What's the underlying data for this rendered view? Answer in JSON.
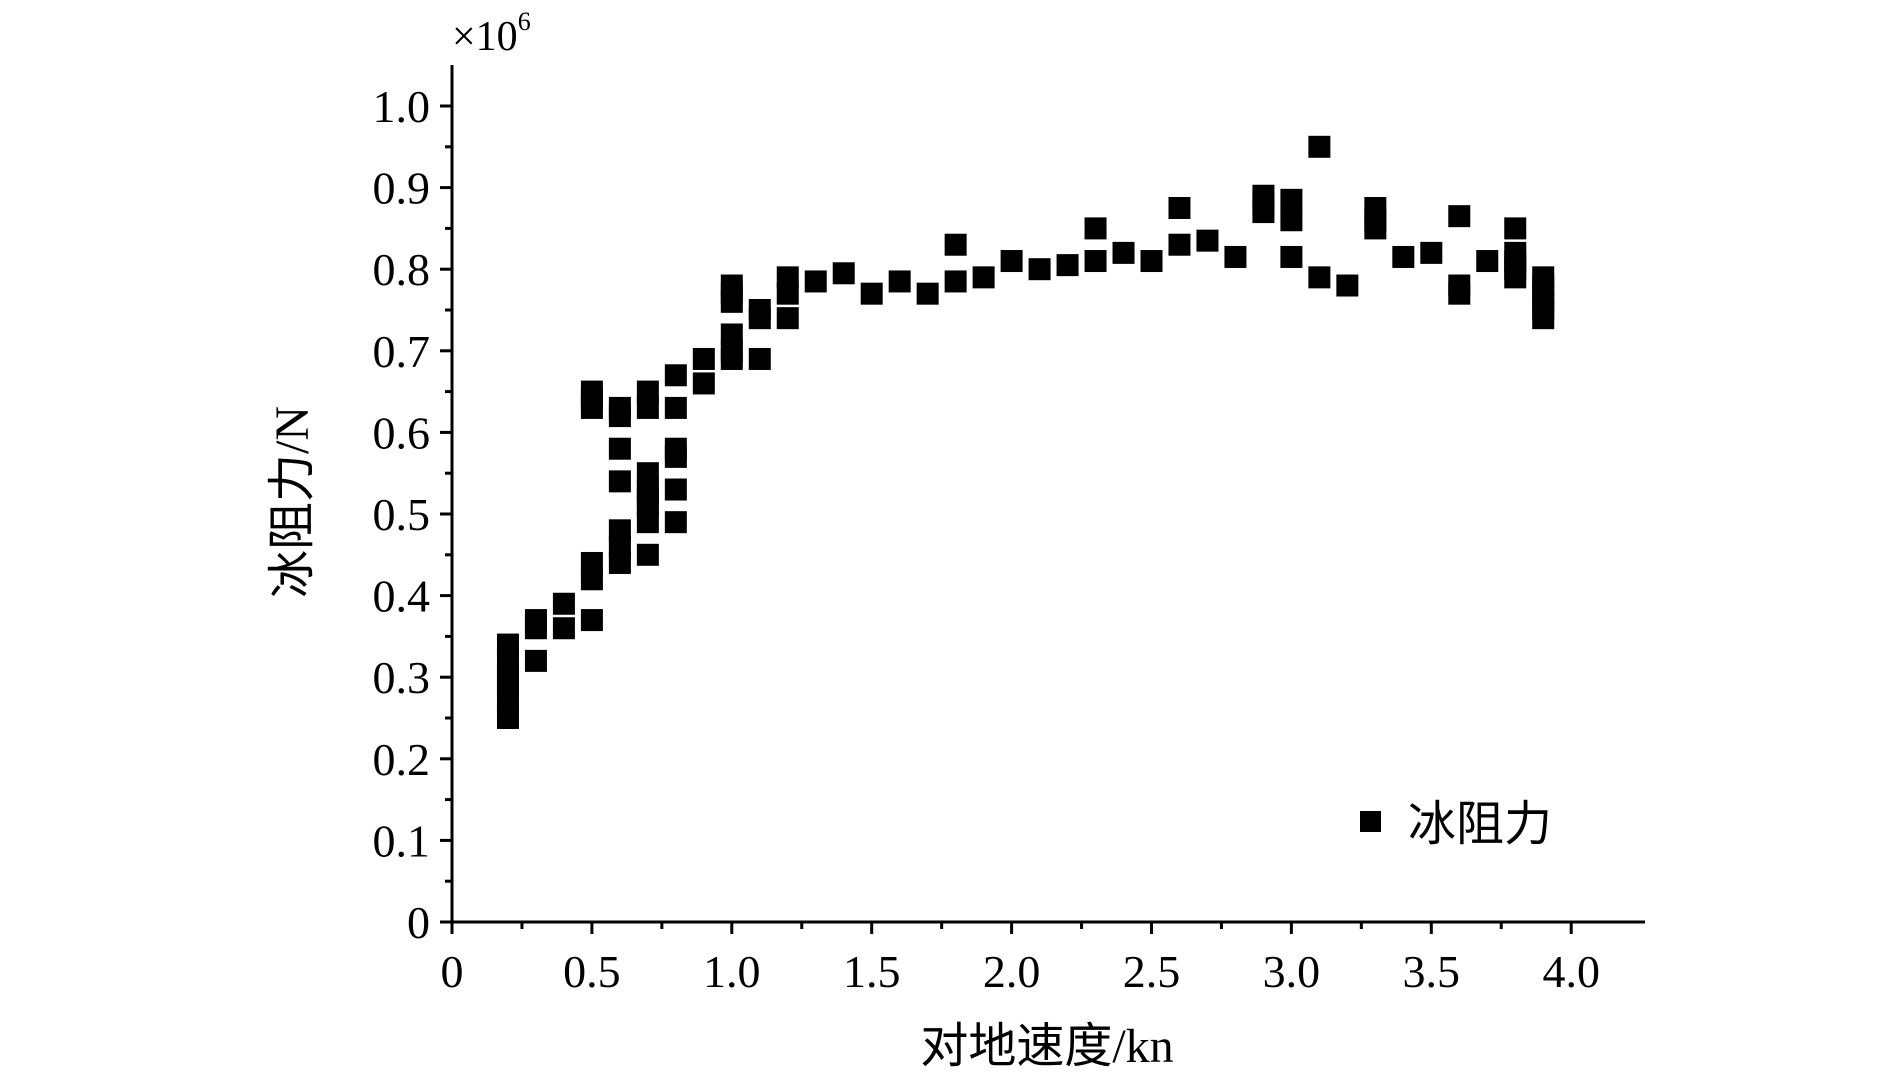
{
  "chart_data": {
    "type": "scatter",
    "title": "",
    "xlabel": "对地速度/kn",
    "ylabel": "冰阻力/N",
    "y_multiplier": {
      "base": "×10",
      "exponent": "6"
    },
    "xlim": [
      0,
      4.25
    ],
    "ylim": [
      0,
      1.05
    ],
    "x_ticks": [
      0,
      0.5,
      1.0,
      1.5,
      2.0,
      2.5,
      3.0,
      3.5,
      4.0
    ],
    "x_tick_labels": [
      "0",
      "0.5",
      "1.0",
      "1.5",
      "2.0",
      "2.5",
      "3.0",
      "3.5",
      "4.0"
    ],
    "y_ticks": [
      0,
      0.1,
      0.2,
      0.3,
      0.4,
      0.5,
      0.6,
      0.7,
      0.8,
      0.9,
      1.0
    ],
    "y_tick_labels": [
      "0",
      "0.1",
      "0.2",
      "0.3",
      "0.4",
      "0.5",
      "0.6",
      "0.7",
      "0.8",
      "0.9",
      "1.0"
    ],
    "grid": false,
    "legend_position": "bottom-right",
    "series": [
      {
        "name": "冰阻力",
        "color": "#000000",
        "marker": "square",
        "points": [
          [
            0.2,
            0.25
          ],
          [
            0.2,
            0.27
          ],
          [
            0.2,
            0.29
          ],
          [
            0.2,
            0.3
          ],
          [
            0.2,
            0.32
          ],
          [
            0.2,
            0.34
          ],
          [
            0.3,
            0.32
          ],
          [
            0.3,
            0.36
          ],
          [
            0.3,
            0.37
          ],
          [
            0.4,
            0.36
          ],
          [
            0.4,
            0.39
          ],
          [
            0.5,
            0.37
          ],
          [
            0.5,
            0.42
          ],
          [
            0.5,
            0.44
          ],
          [
            0.5,
            0.63
          ],
          [
            0.5,
            0.64
          ],
          [
            0.5,
            0.65
          ],
          [
            0.6,
            0.44
          ],
          [
            0.6,
            0.46
          ],
          [
            0.6,
            0.48
          ],
          [
            0.6,
            0.54
          ],
          [
            0.6,
            0.58
          ],
          [
            0.6,
            0.62
          ],
          [
            0.6,
            0.63
          ],
          [
            0.7,
            0.45
          ],
          [
            0.7,
            0.49
          ],
          [
            0.7,
            0.51
          ],
          [
            0.7,
            0.52
          ],
          [
            0.7,
            0.53
          ],
          [
            0.7,
            0.55
          ],
          [
            0.7,
            0.63
          ],
          [
            0.7,
            0.65
          ],
          [
            0.8,
            0.49
          ],
          [
            0.8,
            0.53
          ],
          [
            0.8,
            0.57
          ],
          [
            0.8,
            0.58
          ],
          [
            0.8,
            0.63
          ],
          [
            0.8,
            0.67
          ],
          [
            0.9,
            0.66
          ],
          [
            0.9,
            0.69
          ],
          [
            1.0,
            0.69
          ],
          [
            1.0,
            0.7
          ],
          [
            1.0,
            0.72
          ],
          [
            1.0,
            0.76
          ],
          [
            1.0,
            0.77
          ],
          [
            1.0,
            0.78
          ],
          [
            1.1,
            0.69
          ],
          [
            1.1,
            0.74
          ],
          [
            1.1,
            0.75
          ],
          [
            1.2,
            0.74
          ],
          [
            1.2,
            0.77
          ],
          [
            1.2,
            0.79
          ],
          [
            1.3,
            0.785
          ],
          [
            1.4,
            0.795
          ],
          [
            1.5,
            0.77
          ],
          [
            1.6,
            0.785
          ],
          [
            1.7,
            0.77
          ],
          [
            1.8,
            0.785
          ],
          [
            1.8,
            0.83
          ],
          [
            1.9,
            0.79
          ],
          [
            2.0,
            0.81
          ],
          [
            2.1,
            0.8
          ],
          [
            2.2,
            0.805
          ],
          [
            2.3,
            0.81
          ],
          [
            2.3,
            0.85
          ],
          [
            2.4,
            0.82
          ],
          [
            2.5,
            0.81
          ],
          [
            2.6,
            0.83
          ],
          [
            2.6,
            0.875
          ],
          [
            2.7,
            0.835
          ],
          [
            2.8,
            0.815
          ],
          [
            2.9,
            0.87
          ],
          [
            2.9,
            0.88
          ],
          [
            2.9,
            0.89
          ],
          [
            3.0,
            0.815
          ],
          [
            3.0,
            0.86
          ],
          [
            3.0,
            0.885
          ],
          [
            3.1,
            0.79
          ],
          [
            3.1,
            0.95
          ],
          [
            3.2,
            0.78
          ],
          [
            3.3,
            0.85
          ],
          [
            3.3,
            0.86
          ],
          [
            3.3,
            0.875
          ],
          [
            3.4,
            0.815
          ],
          [
            3.5,
            0.82
          ],
          [
            3.6,
            0.77
          ],
          [
            3.6,
            0.78
          ],
          [
            3.6,
            0.865
          ],
          [
            3.7,
            0.81
          ],
          [
            3.8,
            0.79
          ],
          [
            3.8,
            0.8
          ],
          [
            3.8,
            0.81
          ],
          [
            3.8,
            0.82
          ],
          [
            3.8,
            0.85
          ],
          [
            3.9,
            0.74
          ],
          [
            3.9,
            0.75
          ],
          [
            3.9,
            0.76
          ],
          [
            3.9,
            0.77
          ],
          [
            3.9,
            0.78
          ],
          [
            3.9,
            0.79
          ]
        ]
      }
    ]
  }
}
